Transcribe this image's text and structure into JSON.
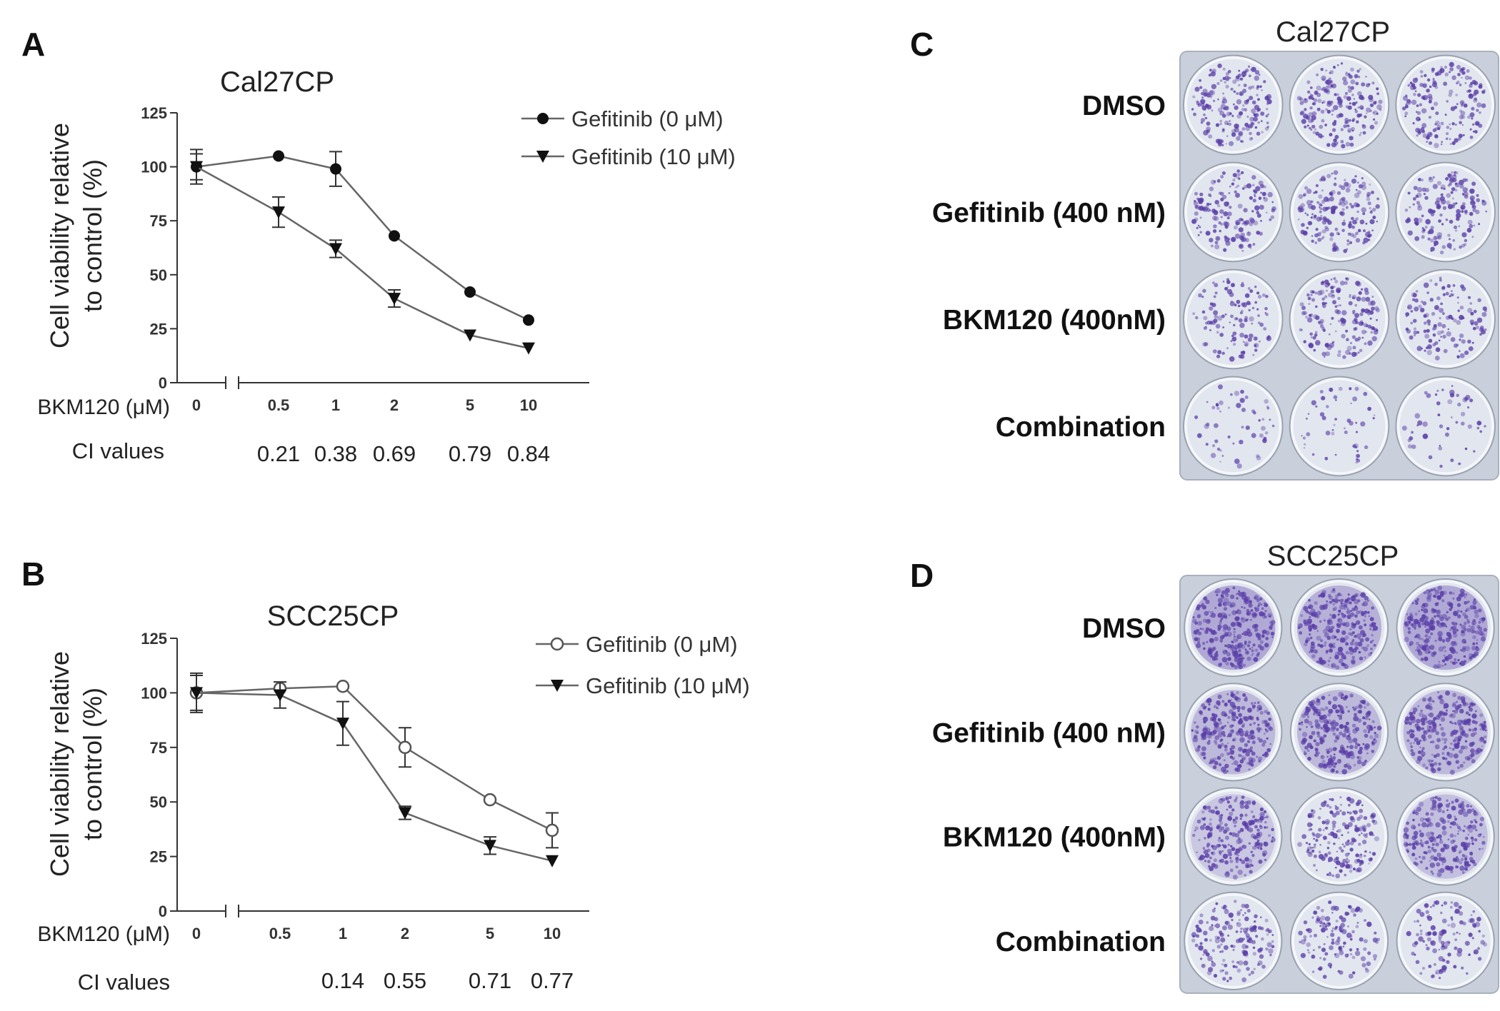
{
  "chart_data": [
    {
      "type": "line",
      "panel": "A",
      "title": "Cal27CP",
      "ylabel_line1": "Cell viability relative",
      "ylabel_line2": "to control (%)",
      "x_prefix": "BKM120 (μM)",
      "categories": [
        "0",
        "0.5",
        "1",
        "2",
        "5",
        "10"
      ],
      "yticks": [
        "0",
        "25",
        "50",
        "75",
        "100",
        "125"
      ],
      "ylim": [
        0,
        125
      ],
      "ci_label": "CI values",
      "ci_values": [
        null,
        "0.21",
        "0.38",
        "0.69",
        "0.79",
        "0.84"
      ],
      "series": [
        {
          "name": "Gefitinib (0 μM)",
          "marker": "circle-filled",
          "values": [
            100,
            105,
            99,
            68,
            42,
            29
          ],
          "errors": [
            6,
            0,
            8,
            0,
            0,
            0
          ]
        },
        {
          "name": "Gefitinib (10 μM)",
          "marker": "triangle-down-filled",
          "values": [
            100,
            79,
            62,
            39,
            22,
            16
          ],
          "errors": [
            8,
            7,
            4,
            4,
            0,
            0
          ]
        }
      ]
    },
    {
      "type": "line",
      "panel": "B",
      "title": "SCC25CP",
      "ylabel_line1": "Cell viability relative",
      "ylabel_line2": "to control (%)",
      "x_prefix": "BKM120 (μM)",
      "categories": [
        "0",
        "0.5",
        "1",
        "2",
        "5",
        "10"
      ],
      "yticks": [
        "0",
        "25",
        "50",
        "75",
        "100",
        "125"
      ],
      "ylim": [
        0,
        125
      ],
      "ci_label": "CI values",
      "ci_values": [
        null,
        null,
        "0.14",
        "0.55",
        "0.71",
        "0.77"
      ],
      "series": [
        {
          "name": "Gefitinib (0 μM)",
          "marker": "circle-open",
          "values": [
            100,
            102,
            103,
            75,
            51,
            37
          ],
          "errors": [
            8,
            0,
            0,
            9,
            0,
            8
          ]
        },
        {
          "name": "Gefitinib (10 μM)",
          "marker": "triangle-down-filled",
          "values": [
            100,
            99,
            86,
            45,
            30,
            23
          ],
          "errors": [
            9,
            6,
            10,
            3,
            4,
            0
          ]
        }
      ]
    }
  ],
  "plates": [
    {
      "panel": "C",
      "title": "Cal27CP",
      "rows": [
        {
          "label": "DMSO",
          "density": [
            0.55,
            0.6,
            0.5
          ]
        },
        {
          "label": "Gefitinib  (400 nM)",
          "density": [
            0.45,
            0.55,
            0.45
          ]
        },
        {
          "label": "BKM120 (400nM)",
          "density": [
            0.3,
            0.5,
            0.35
          ]
        },
        {
          "label": "Combination",
          "density": [
            0.05,
            0.04,
            0.04
          ]
        }
      ]
    },
    {
      "panel": "D",
      "title": "SCC25CP",
      "rows": [
        {
          "label": "DMSO",
          "density": [
            0.9,
            0.85,
            0.9
          ]
        },
        {
          "label": "Gefitinib  (400 nM)",
          "density": [
            0.8,
            0.8,
            0.8
          ]
        },
        {
          "label": "BKM120 (400nM)",
          "density": [
            0.7,
            0.55,
            0.75
          ]
        },
        {
          "label": "Combination",
          "density": [
            0.45,
            0.35,
            0.3
          ]
        }
      ]
    }
  ],
  "colors": {
    "line": "#666666",
    "marker": "#111111",
    "stain": "#5a3ea8",
    "plate_bg": "#c9d0dc",
    "well_bg": "#e2e6ee"
  }
}
